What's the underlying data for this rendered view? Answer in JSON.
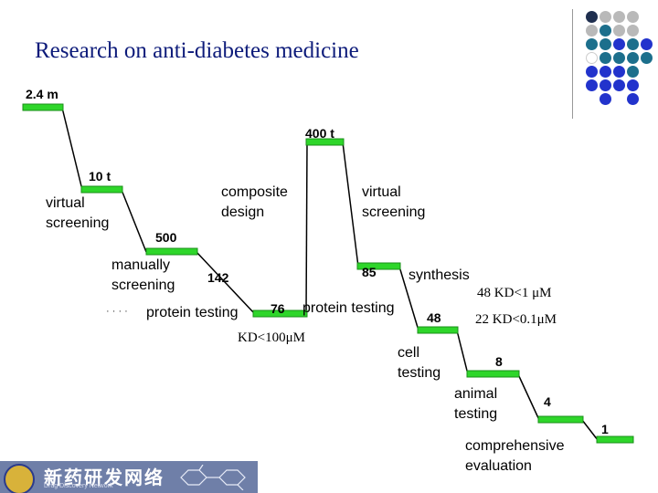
{
  "title": "Research on anti-diabetes medicine",
  "stages": [
    {
      "label": "virtual\nscreening"
    },
    {
      "label": "manually\nscreening"
    },
    {
      "label": "composite\ndesign"
    },
    {
      "label": "virtual\nscreening"
    },
    {
      "label": "protein testing"
    },
    {
      "label": "protein testing"
    },
    {
      "label": "synthesis"
    },
    {
      "label": "cell\ntesting"
    },
    {
      "label": "animal\ntesting"
    },
    {
      "label": "comprehensive\nevaluation"
    }
  ],
  "counts": [
    "2.4 m",
    "10 t",
    "500",
    "142",
    "400 t",
    "85",
    "76",
    "48",
    "8",
    "4",
    "1"
  ],
  "notes": {
    "kd_100": "KD<100μM",
    "kd_1": "48 KD<1 μM",
    "kd_01": "22 KD<0.1μM",
    "dots": "· · · ·"
  },
  "logo": {
    "text": "新药研发网络",
    "sub": "Drug Discovery Network"
  },
  "colors": {
    "bar": "#2ed62a",
    "title": "#0d1b7a",
    "dot_grey": "#b9b9b9",
    "dot_teal": "#1c6f8c",
    "dot_blue": "#2233cc",
    "dot_dark": "#1f2f4f"
  }
}
